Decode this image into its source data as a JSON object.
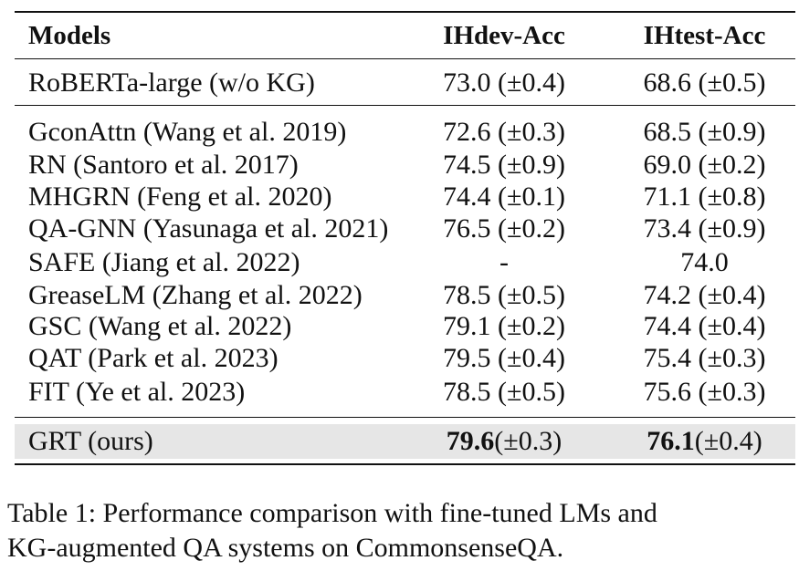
{
  "table": {
    "headers": [
      "Models",
      "IHdev-Acc",
      "IHtest-Acc"
    ],
    "baseline": {
      "model": "RoBERTa-large (w/o KG)",
      "dev": "73.0 (±0.4)",
      "test": "68.6 (±0.5)"
    },
    "rows": [
      {
        "model": "GconAttn (Wang et al. 2019)",
        "dev": "72.6 (±0.3)",
        "test": "68.5 (±0.9)"
      },
      {
        "model": "RN (Santoro et al. 2017)",
        "dev": "74.5 (±0.9)",
        "test": "69.0 (±0.2)"
      },
      {
        "model": "MHGRN (Feng et al. 2020)",
        "dev": "74.4 (±0.1)",
        "test": "71.1 (±0.8)"
      },
      {
        "model": "QA-GNN (Yasunaga et al. 2021)",
        "dev": "76.5 (±0.2)",
        "test": "73.4 (±0.9)"
      },
      {
        "model": "SAFE (Jiang et al. 2022)",
        "dev": "-",
        "test": "74.0"
      },
      {
        "model": "GreaseLM (Zhang et al. 2022)",
        "dev": "78.5 (±0.5)",
        "test": "74.2 (±0.4)"
      },
      {
        "model": "GSC (Wang et al. 2022)",
        "dev": "79.1 (±0.2)",
        "test": "74.4 (±0.4)"
      },
      {
        "model": "QAT (Park et al. 2023)",
        "dev": "79.5 (±0.4)",
        "test": "75.4 (±0.3)"
      },
      {
        "model": "FIT (Ye et al. 2023)",
        "dev": "78.5 (±0.5)",
        "test": "75.6 (±0.3)"
      }
    ],
    "ours": {
      "model": "GRT (ours)",
      "dev_bold": "79.6",
      "dev_rest": "(±0.3)",
      "test_bold": "76.1",
      "test_rest": "(±0.4)"
    }
  },
  "caption": {
    "line1": "Table 1: Performance comparison with fine-tuned LMs and",
    "line2": "KG-augmented QA systems on CommonsenseQA."
  }
}
